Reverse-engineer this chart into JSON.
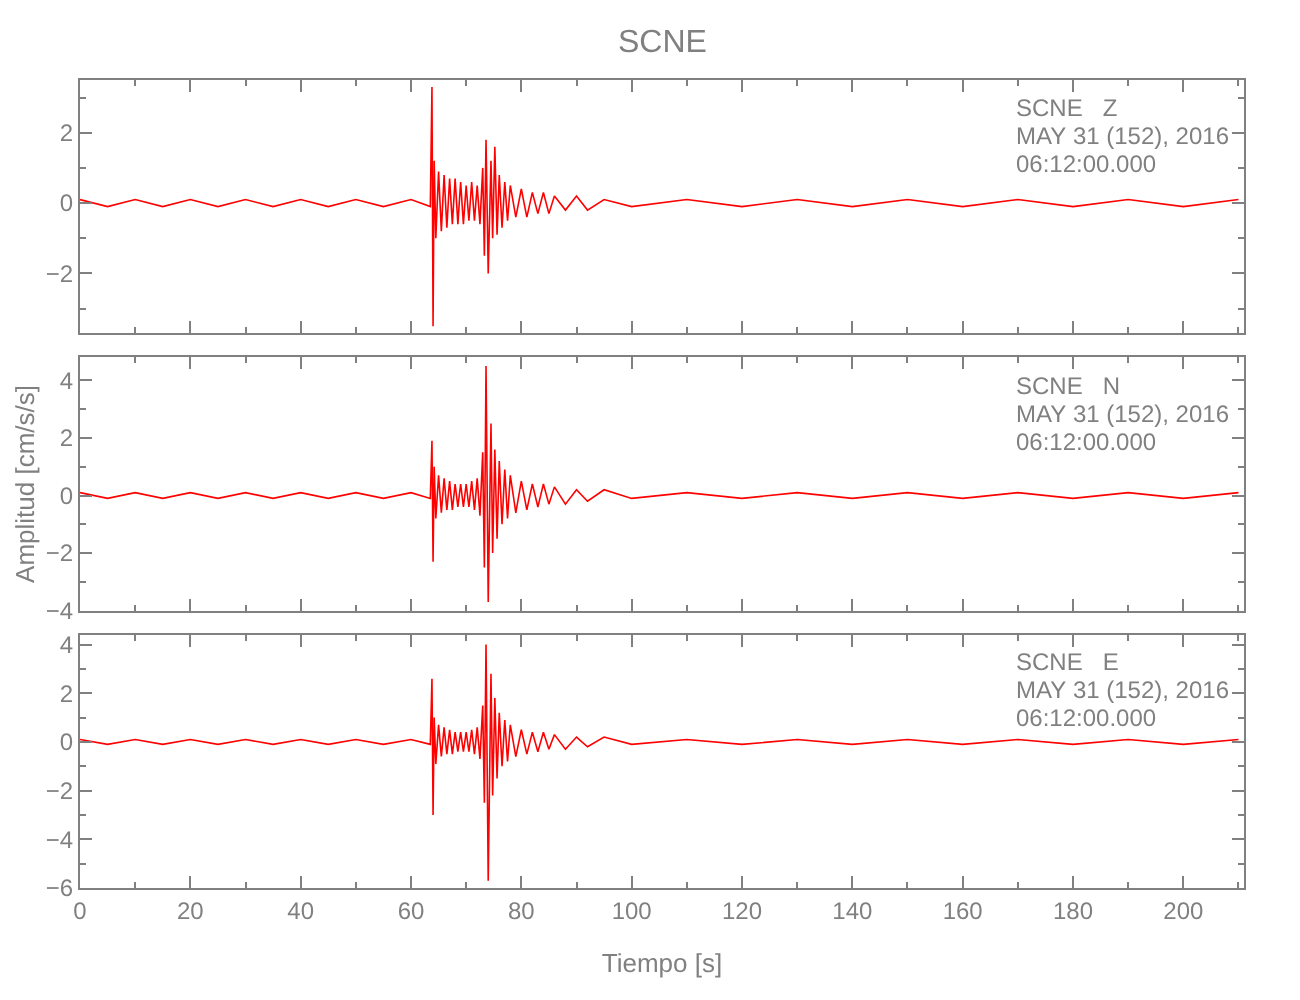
{
  "chart_data": [
    {
      "type": "line",
      "title": "SCNE",
      "tick_labels": "y",
      "xlim": [
        0,
        211
      ],
      "ylim": [
        -3.7,
        3.5
      ],
      "yticks": [
        -2,
        0,
        2
      ],
      "marker": "none",
      "line_style": "solid",
      "annotations": [
        "SCNE   Z",
        "MAY 31 (152), 2016",
        "06:12:00.000"
      ],
      "series": [
        {
          "color": "#ff0000",
          "x": [
            0,
            5,
            10,
            15,
            20,
            25,
            30,
            35,
            40,
            45,
            50,
            55,
            60,
            63.5,
            63.8,
            64.0,
            64.2,
            64.5,
            65,
            65.5,
            66,
            66.5,
            67,
            67.5,
            68,
            68.5,
            69,
            69.5,
            70,
            70.5,
            71,
            71.5,
            72,
            72.5,
            73,
            73.3,
            73.6,
            74,
            74.5,
            74.8,
            75.2,
            75.6,
            76,
            76.5,
            77,
            77.5,
            78,
            79,
            80,
            81,
            82,
            83,
            84,
            85,
            86,
            88,
            90,
            92,
            95,
            100,
            110,
            120,
            130,
            140,
            150,
            160,
            170,
            180,
            190,
            200,
            210
          ],
          "values": [
            0.1,
            -0.1,
            0.1,
            -0.1,
            0.1,
            -0.1,
            0.1,
            -0.1,
            0.1,
            -0.1,
            0.1,
            -0.1,
            0.1,
            -0.1,
            3.3,
            -3.5,
            1.2,
            -1.0,
            0.9,
            -0.8,
            0.8,
            -0.7,
            0.7,
            -0.6,
            0.7,
            -0.6,
            0.6,
            -0.6,
            0.5,
            -0.5,
            0.6,
            -0.5,
            0.5,
            -0.6,
            1.0,
            -1.5,
            1.8,
            -2.0,
            1.2,
            -1.0,
            1.6,
            -0.9,
            0.8,
            -0.7,
            0.6,
            -0.5,
            0.5,
            -0.4,
            0.4,
            -0.4,
            0.3,
            -0.3,
            0.3,
            -0.3,
            0.2,
            -0.2,
            0.2,
            -0.2,
            0.1,
            -0.1,
            0.1,
            -0.1,
            0.1,
            -0.1,
            0.1,
            -0.1,
            0.1,
            -0.1,
            0.1,
            -0.1,
            0.1
          ]
        }
      ]
    },
    {
      "type": "line",
      "ylabel": "Amplitud [cm/s/s]",
      "tick_labels": "y",
      "xlim": [
        0,
        211
      ],
      "ylim": [
        -4,
        4.8
      ],
      "yticks": [
        -4,
        -2,
        0,
        2,
        4
      ],
      "marker": "none",
      "line_style": "solid",
      "annotations": [
        "SCNE   N",
        "MAY 31 (152), 2016",
        "06:12:00.000"
      ],
      "series": [
        {
          "color": "#ff0000",
          "x": [
            0,
            5,
            10,
            15,
            20,
            25,
            30,
            35,
            40,
            45,
            50,
            55,
            60,
            63.5,
            63.8,
            64.0,
            64.2,
            64.5,
            65,
            65.5,
            66,
            66.5,
            67,
            67.5,
            68,
            68.5,
            69,
            69.5,
            70,
            70.5,
            71,
            71.5,
            72,
            72.5,
            73,
            73.3,
            73.6,
            74,
            74.5,
            74.8,
            75.2,
            75.6,
            76,
            76.5,
            77,
            77.5,
            78,
            79,
            80,
            81,
            82,
            83,
            84,
            85,
            86,
            88,
            90,
            92,
            95,
            100,
            110,
            120,
            130,
            140,
            150,
            160,
            170,
            180,
            190,
            200,
            210
          ],
          "values": [
            0.1,
            -0.1,
            0.1,
            -0.1,
            0.1,
            -0.1,
            0.1,
            -0.1,
            0.1,
            -0.1,
            0.1,
            -0.1,
            0.1,
            -0.1,
            1.9,
            -2.3,
            1.0,
            -0.8,
            0.7,
            -0.6,
            0.6,
            -0.5,
            0.5,
            -0.5,
            0.4,
            -0.4,
            0.4,
            -0.4,
            0.4,
            -0.4,
            0.5,
            -0.5,
            0.6,
            -0.7,
            1.5,
            -2.5,
            4.5,
            -3.7,
            2.5,
            -2.0,
            1.6,
            -1.5,
            1.2,
            -1.0,
            0.9,
            -0.8,
            0.7,
            -0.6,
            0.5,
            -0.5,
            0.4,
            -0.4,
            0.4,
            -0.3,
            0.3,
            -0.3,
            0.2,
            -0.2,
            0.2,
            -0.1,
            0.1,
            -0.1,
            0.1,
            -0.1,
            0.1,
            -0.1,
            0.1,
            -0.1,
            0.1,
            -0.1,
            0.1
          ]
        }
      ]
    },
    {
      "type": "line",
      "xlabel": "Tiempo [s]",
      "xlim": [
        0,
        211
      ],
      "xticks": [
        0,
        20,
        40,
        60,
        80,
        100,
        120,
        140,
        160,
        180,
        200
      ],
      "ylim": [
        -6,
        4.4
      ],
      "yticks": [
        -6,
        -4,
        -2,
        0,
        2,
        4
      ],
      "marker": "none",
      "line_style": "solid",
      "annotations": [
        "SCNE   E",
        "MAY 31 (152), 2016",
        "06:12:00.000"
      ],
      "series": [
        {
          "color": "#ff0000",
          "x": [
            0,
            5,
            10,
            15,
            20,
            25,
            30,
            35,
            40,
            45,
            50,
            55,
            60,
            63.5,
            63.8,
            64.0,
            64.2,
            64.5,
            65,
            65.5,
            66,
            66.5,
            67,
            67.5,
            68,
            68.5,
            69,
            69.5,
            70,
            70.5,
            71,
            71.5,
            72,
            72.5,
            73,
            73.3,
            73.6,
            74,
            74.5,
            74.8,
            75.2,
            75.6,
            76,
            76.5,
            77,
            77.5,
            78,
            79,
            80,
            81,
            82,
            83,
            84,
            85,
            86,
            88,
            90,
            92,
            95,
            100,
            110,
            120,
            130,
            140,
            150,
            160,
            170,
            180,
            190,
            200,
            210
          ],
          "values": [
            0.1,
            -0.1,
            0.1,
            -0.1,
            0.1,
            -0.1,
            0.1,
            -0.1,
            0.1,
            -0.1,
            0.1,
            -0.1,
            0.1,
            -0.1,
            2.6,
            -3.0,
            1.0,
            -0.9,
            0.7,
            -0.6,
            0.6,
            -0.5,
            0.5,
            -0.5,
            0.4,
            -0.4,
            0.4,
            -0.4,
            0.4,
            -0.4,
            0.5,
            -0.5,
            0.6,
            -0.7,
            1.5,
            -2.5,
            4.0,
            -5.7,
            2.8,
            -2.2,
            1.8,
            -1.5,
            1.2,
            -1.0,
            0.9,
            -0.8,
            0.7,
            -0.6,
            0.5,
            -0.5,
            0.4,
            -0.4,
            0.4,
            -0.3,
            0.3,
            -0.3,
            0.2,
            -0.2,
            0.2,
            -0.1,
            0.1,
            -0.1,
            0.1,
            -0.1,
            0.1,
            -0.1,
            0.1,
            -0.1,
            0.1,
            -0.1,
            0.1
          ]
        }
      ]
    }
  ]
}
